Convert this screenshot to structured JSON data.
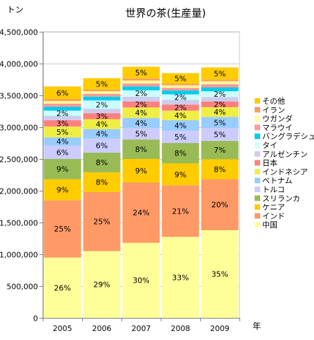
{
  "chart_data": {
    "type": "bar",
    "stacked": true,
    "title": "世界の茶(生産量)",
    "ylabel": "トン",
    "xlabel": "年",
    "ylim": [
      0,
      4500000
    ],
    "yticks": [
      0,
      500000,
      1000000,
      1500000,
      2000000,
      2500000,
      3000000,
      3500000,
      4000000,
      4500000
    ],
    "ytick_labels": [
      "0",
      "500,000",
      "1,000,000",
      "1,500,000",
      "2,000,000",
      "2,500,000",
      "3,000,000",
      "3,500,000",
      "4,000,000",
      "4,500,000"
    ],
    "grid": true,
    "legend_position": "right",
    "categories": [
      "2005",
      "2006",
      "2007",
      "2008",
      "2009"
    ],
    "series": [
      {
        "name": "中国",
        "color": "#ffff99",
        "values": [
          950000,
          1050000,
          1180000,
          1275000,
          1380000
        ],
        "labels": [
          "26%",
          "29%",
          "30%",
          "33%",
          "35%"
        ]
      },
      {
        "name": "インド",
        "color": "#ff9966",
        "values": [
          900000,
          930000,
          950000,
          810000,
          800000
        ],
        "labels": [
          "25%",
          "25%",
          "24%",
          "21%",
          "20%"
        ]
      },
      {
        "name": "ケニア",
        "color": "#ffcc00",
        "values": [
          330000,
          310000,
          370000,
          345000,
          315000
        ],
        "labels": [
          "9%",
          "8%",
          "9%",
          "9%",
          "8%"
        ]
      },
      {
        "name": "スリランカ",
        "color": "#99bb55",
        "values": [
          320000,
          310000,
          305000,
          320000,
          290000
        ],
        "labels": [
          "9%",
          "8%",
          "8%",
          "8%",
          "7%"
        ]
      },
      {
        "name": "トルコ",
        "color": "#ccccff",
        "values": [
          210000,
          220000,
          180000,
          195000,
          200000
        ],
        "labels": [
          "6%",
          "6%",
          "5%",
          "5%",
          "5%"
        ]
      },
      {
        "name": "ベトナム",
        "color": "#99ccff",
        "values": [
          130000,
          150000,
          160000,
          165000,
          175000
        ],
        "labels": [
          "4%",
          "4%",
          "4%",
          "4%",
          "5%"
        ]
      },
      {
        "name": "インドネシア",
        "color": "#eeee44",
        "values": [
          170000,
          155000,
          165000,
          150000,
          155000
        ],
        "labels": [
          "5%",
          "4%",
          "4%",
          "4%",
          "4%"
        ]
      },
      {
        "name": "日本",
        "color": "#ff8080",
        "values": [
          100000,
          95000,
          95000,
          96000,
          90000
        ],
        "labels": [
          "3%",
          "3%",
          "2%",
          "2%",
          "2%"
        ]
      },
      {
        "name": "アルゼンチン",
        "color": "#ccccee",
        "values": [
          70000,
          70000,
          75000,
          75000,
          70000
        ],
        "labels": [
          "",
          "",
          "",
          "",
          ""
        ]
      },
      {
        "name": "タイ",
        "color": "#ccffff",
        "values": [
          80000,
          130000,
          100000,
          85000,
          90000
        ],
        "labels": [
          "2%",
          "2%",
          "2%",
          "2%",
          "2%"
        ]
      },
      {
        "name": "バングラデシュ",
        "color": "#00ccee",
        "values": [
          60000,
          60000,
          60000,
          60000,
          60000
        ],
        "labels": [
          "",
          "",
          "",
          "",
          ""
        ]
      },
      {
        "name": "マラウイ",
        "color": "#ff9999",
        "values": [
          50000,
          45000,
          48000,
          42000,
          52000
        ],
        "labels": [
          "",
          "",
          "",
          "",
          ""
        ]
      },
      {
        "name": "ウガンダ",
        "color": "#ffff99",
        "values": [
          40000,
          40000,
          45000,
          40000,
          45000
        ],
        "labels": [
          "",
          "",
          "",
          "",
          ""
        ]
      },
      {
        "name": "イラン",
        "color": "#ff9966",
        "values": [
          30000,
          25000,
          30000,
          25000,
          25000
        ],
        "labels": [
          "",
          "",
          "",
          "",
          ""
        ]
      },
      {
        "name": "その他",
        "color": "#ffcc00",
        "values": [
          200000,
          180000,
          187000,
          167000,
          193000
        ],
        "labels": [
          "6%",
          "5%",
          "5%",
          "5%",
          "5%"
        ]
      }
    ]
  }
}
